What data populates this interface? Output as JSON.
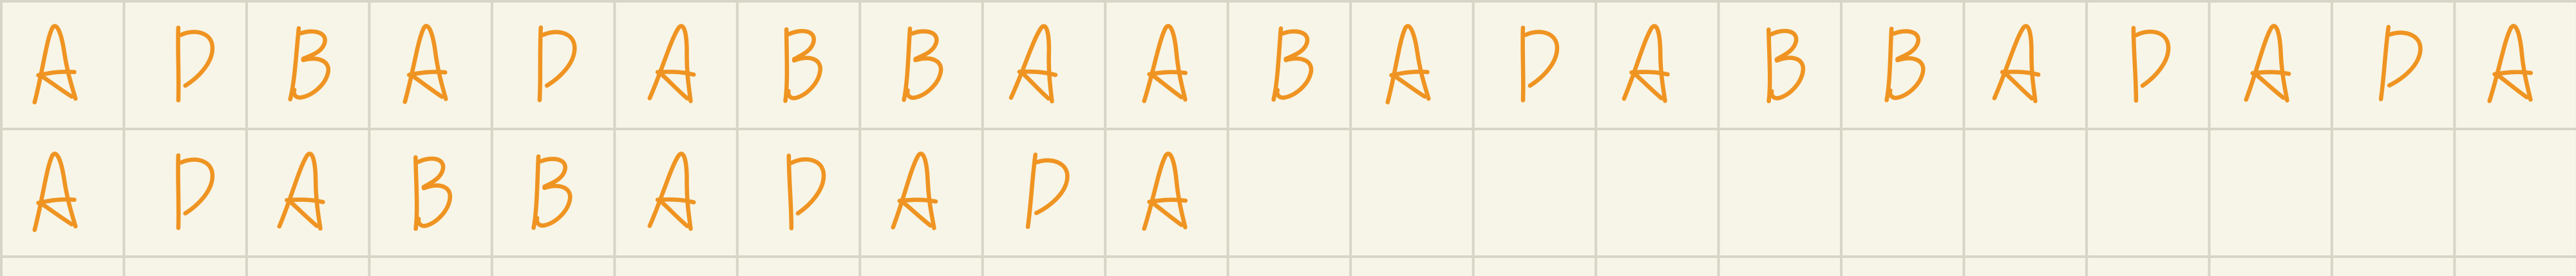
{
  "grid": {
    "row1": [
      "A",
      "D",
      "B",
      "A",
      "D",
      "A",
      "B",
      "B",
      "A",
      "A",
      "B",
      "A",
      "D",
      "A",
      "B",
      "B",
      "A",
      "D",
      "A",
      "D",
      "A"
    ],
    "row2": [
      "A",
      "D",
      "A",
      "B",
      "B",
      "A",
      "D",
      "A",
      "D",
      "A"
    ]
  },
  "colors": {
    "ink": "#ef9422",
    "paper": "#f7f5e7",
    "grid": "#d6d5c6"
  }
}
